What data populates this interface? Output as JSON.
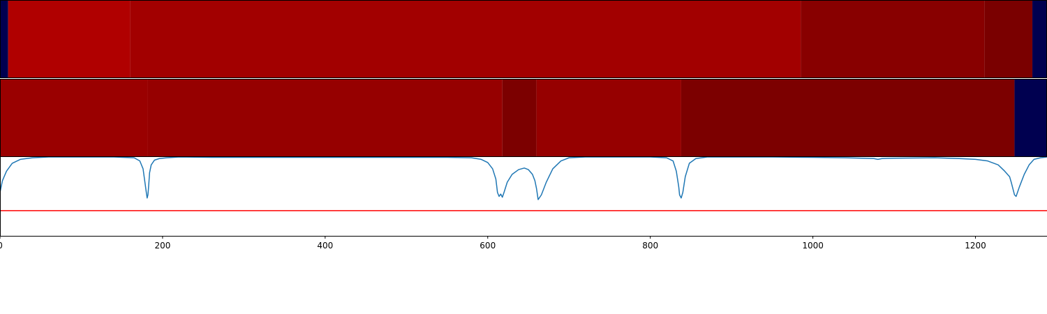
{
  "chart_data": [
    {
      "type": "heatmap",
      "title": "",
      "xlim": [
        0,
        1288
      ],
      "colors": [
        "#000050",
        "#b00000",
        "#a20000",
        "#880000",
        "#7a0000",
        "#000050"
      ],
      "segments": [
        {
          "x0": 0,
          "x1": 10,
          "color_index": 0
        },
        {
          "x0": 10,
          "x1": 160,
          "color_index": 1
        },
        {
          "x0": 160,
          "x1": 985,
          "color_index": 2
        },
        {
          "x0": 985,
          "x1": 1211,
          "color_index": 3
        },
        {
          "x0": 1211,
          "x1": 1270,
          "color_index": 4
        },
        {
          "x0": 1270,
          "x1": 1288,
          "color_index": 5
        }
      ]
    },
    {
      "type": "heatmap",
      "title": "",
      "xlim": [
        0,
        1288
      ],
      "colors": [
        "#9a0000",
        "#960000",
        "#7c0000",
        "#960000",
        "#7c0000",
        "#000050"
      ],
      "segments": [
        {
          "x0": 0,
          "x1": 182,
          "color_index": 0
        },
        {
          "x0": 182,
          "x1": 618,
          "color_index": 1
        },
        {
          "x0": 618,
          "x1": 660,
          "color_index": 2
        },
        {
          "x0": 660,
          "x1": 838,
          "color_index": 3
        },
        {
          "x0": 838,
          "x1": 1248,
          "color_index": 4
        },
        {
          "x0": 1248,
          "x1": 1288,
          "color_index": 5
        }
      ]
    },
    {
      "type": "line",
      "title": "",
      "xlabel": "",
      "ylabel": "",
      "xlim": [
        0,
        1288
      ],
      "ylim": [
        0,
        1
      ],
      "xticks": [
        0,
        200,
        400,
        600,
        800,
        1000,
        1200
      ],
      "xtick_labels": [
        "0",
        "200",
        "400",
        "600",
        "800",
        "1000",
        "1200"
      ],
      "line_color": "#1f77b4",
      "threshold": 0.32,
      "threshold_color": "#ff0000",
      "series": [
        {
          "x": [
            0,
            3,
            8,
            15,
            25,
            40,
            60,
            100,
            140,
            165,
            172,
            176,
            178,
            180,
            181,
            182,
            183,
            184,
            186,
            190,
            196,
            205,
            220,
            260,
            300,
            350,
            400,
            450,
            500,
            550,
            580,
            592,
            600,
            606,
            610,
            612,
            614,
            616,
            618,
            620,
            624,
            630,
            638,
            645,
            650,
            655,
            658,
            660,
            662,
            666,
            672,
            680,
            690,
            700,
            720,
            760,
            800,
            820,
            828,
            832,
            835,
            836,
            838,
            840,
            843,
            848,
            856,
            870,
            900,
            950,
            1000,
            1040,
            1060,
            1075,
            1080,
            1085,
            1100,
            1150,
            1180,
            1200,
            1215,
            1228,
            1236,
            1242,
            1244,
            1246,
            1248,
            1250,
            1254,
            1260,
            1266,
            1272,
            1280,
            1288
          ],
          "values": [
            0.55,
            0.7,
            0.82,
            0.92,
            0.97,
            0.99,
            1.0,
            1.0,
            1.0,
            0.99,
            0.95,
            0.85,
            0.7,
            0.55,
            0.48,
            0.52,
            0.65,
            0.8,
            0.9,
            0.96,
            0.98,
            0.99,
            1.0,
            0.995,
            0.995,
            0.995,
            0.995,
            0.995,
            0.995,
            0.995,
            0.99,
            0.97,
            0.93,
            0.85,
            0.72,
            0.55,
            0.5,
            0.53,
            0.49,
            0.55,
            0.68,
            0.78,
            0.84,
            0.86,
            0.84,
            0.78,
            0.7,
            0.6,
            0.46,
            0.52,
            0.68,
            0.85,
            0.95,
            0.99,
            1.0,
            1.0,
            1.0,
            0.99,
            0.95,
            0.82,
            0.62,
            0.52,
            0.48,
            0.55,
            0.75,
            0.92,
            0.98,
            1.0,
            1.0,
            1.0,
            0.995,
            0.99,
            0.985,
            0.98,
            0.97,
            0.98,
            0.985,
            0.99,
            0.98,
            0.97,
            0.95,
            0.9,
            0.82,
            0.75,
            0.68,
            0.6,
            0.52,
            0.5,
            0.62,
            0.78,
            0.9,
            0.97,
            0.99,
            1.0
          ]
        }
      ]
    }
  ]
}
